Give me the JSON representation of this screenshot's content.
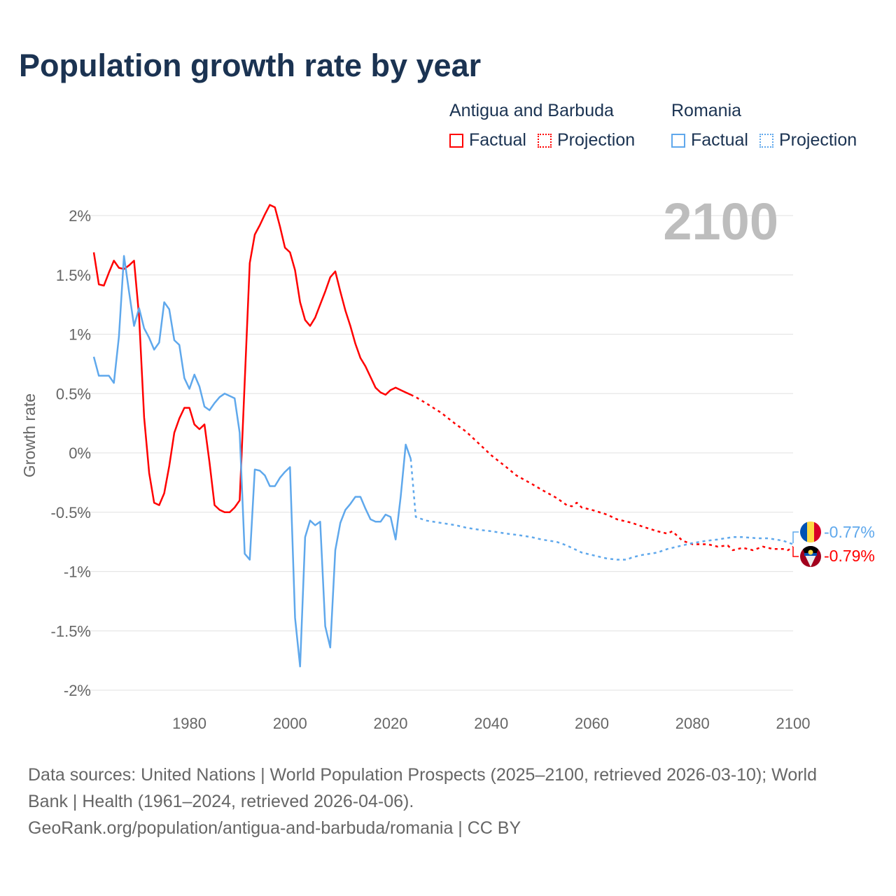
{
  "title": "Population growth rate by year",
  "legend": [
    {
      "country": "Antigua and Barbuda",
      "factual": "Factual",
      "projection": "Projection",
      "color": "#ff0000"
    },
    {
      "country": "Romania",
      "factual": "Factual",
      "projection": "Projection",
      "color": "#5fa8ec"
    }
  ],
  "year_label": "2100",
  "end_labels": {
    "romania": "-0.77%",
    "antigua": "-0.79%"
  },
  "footer": {
    "line1": "Data sources: United Nations | World Population Prospects (2025–2100, retrieved 2026-03-10); World",
    "line2": "Bank | Health (1961–2024, retrieved 2026-04-06).",
    "line3": "GeoRank.org/population/antigua-and-barbuda/romania | CC BY"
  },
  "chart_data": {
    "type": "line",
    "title": "Population growth rate by year",
    "xlabel": "",
    "ylabel": "Growth rate",
    "xlim": [
      1961,
      2100
    ],
    "ylim": [
      -2,
      2
    ],
    "yticks": [
      2,
      1.5,
      1,
      0.5,
      0,
      -0.5,
      -1,
      -1.5,
      -2
    ],
    "ytick_labels": [
      "2%",
      "1.5%",
      "1%",
      "0.5%",
      "0%",
      "-0.5%",
      "-1%",
      "-1.5%",
      "-2%"
    ],
    "xticks": [
      1980,
      2000,
      2020,
      2040,
      2060,
      2080,
      2100
    ],
    "xtick_labels": [
      "1980",
      "2000",
      "2020",
      "2040",
      "2060",
      "2080",
      "2100"
    ],
    "grid": true,
    "legend_position": "top-right",
    "series": [
      {
        "name": "Antigua and Barbuda",
        "color": "#ff0000",
        "factual": {
          "x": [
            1961,
            1962,
            1963,
            1964,
            1965,
            1966,
            1967,
            1968,
            1969,
            1970,
            1971,
            1972,
            1973,
            1974,
            1975,
            1976,
            1977,
            1978,
            1979,
            1980,
            1981,
            1982,
            1983,
            1984,
            1985,
            1986,
            1987,
            1988,
            1989,
            1990,
            1991,
            1992,
            1993,
            1994,
            1995,
            1996,
            1997,
            1998,
            1999,
            2000,
            2001,
            2002,
            2003,
            2004,
            2005,
            2006,
            2007,
            2008,
            2009,
            2010,
            2011,
            2012,
            2013,
            2014,
            2015,
            2016,
            2017,
            2018,
            2019,
            2020,
            2021,
            2022,
            2023,
            2024
          ],
          "y": [
            1.69,
            1.42,
            1.41,
            1.52,
            1.62,
            1.56,
            1.55,
            1.58,
            1.62,
            1.15,
            0.3,
            -0.17,
            -0.42,
            -0.44,
            -0.34,
            -0.11,
            0.17,
            0.29,
            0.38,
            0.38,
            0.24,
            0.2,
            0.24,
            -0.08,
            -0.44,
            -0.48,
            -0.5,
            -0.5,
            -0.46,
            -0.4,
            0.6,
            1.6,
            1.84,
            1.92,
            2.01,
            2.09,
            2.07,
            1.91,
            1.73,
            1.69,
            1.54,
            1.27,
            1.12,
            1.07,
            1.14,
            1.25,
            1.36,
            1.48,
            1.53,
            1.36,
            1.2,
            1.07,
            0.92,
            0.8,
            0.73,
            0.64,
            0.55,
            0.51,
            0.49,
            0.53,
            0.55,
            0.53,
            0.51,
            0.49
          ]
        },
        "projection": {
          "x": [
            2024,
            2025,
            2027,
            2030,
            2033,
            2035,
            2038,
            2040,
            2043,
            2045,
            2048,
            2050,
            2053,
            2055,
            2056,
            2057,
            2058,
            2060,
            2063,
            2065,
            2068,
            2070,
            2073,
            2075,
            2076,
            2078,
            2080,
            2083,
            2085,
            2087,
            2088,
            2090,
            2092,
            2094,
            2096,
            2098,
            2099,
            2100
          ],
          "y": [
            0.49,
            0.47,
            0.42,
            0.34,
            0.24,
            0.18,
            0.06,
            -0.02,
            -0.12,
            -0.19,
            -0.26,
            -0.31,
            -0.38,
            -0.44,
            -0.45,
            -0.42,
            -0.46,
            -0.48,
            -0.52,
            -0.56,
            -0.59,
            -0.62,
            -0.66,
            -0.68,
            -0.66,
            -0.74,
            -0.77,
            -0.77,
            -0.79,
            -0.78,
            -0.82,
            -0.8,
            -0.82,
            -0.79,
            -0.81,
            -0.81,
            -0.82,
            -0.79
          ]
        }
      },
      {
        "name": "Romania",
        "color": "#5fa8ec",
        "factual": {
          "x": [
            1961,
            1962,
            1963,
            1964,
            1965,
            1966,
            1967,
            1968,
            1969,
            1970,
            1971,
            1972,
            1973,
            1974,
            1975,
            1976,
            1977,
            1978,
            1979,
            1980,
            1981,
            1982,
            1983,
            1984,
            1985,
            1986,
            1987,
            1988,
            1989,
            1990,
            1991,
            1992,
            1993,
            1994,
            1995,
            1996,
            1997,
            1998,
            1999,
            2000,
            2001,
            2002,
            2003,
            2004,
            2005,
            2006,
            2007,
            2008,
            2009,
            2010,
            2011,
            2012,
            2013,
            2014,
            2015,
            2016,
            2017,
            2018,
            2019,
            2020,
            2021,
            2022,
            2023,
            2024
          ],
          "y": [
            0.81,
            0.65,
            0.65,
            0.65,
            0.59,
            0.98,
            1.66,
            1.36,
            1.07,
            1.22,
            1.05,
            0.97,
            0.87,
            0.93,
            1.27,
            1.21,
            0.95,
            0.91,
            0.63,
            0.54,
            0.66,
            0.56,
            0.39,
            0.36,
            0.42,
            0.47,
            0.5,
            0.48,
            0.46,
            0.17,
            -0.85,
            -0.9,
            -0.14,
            -0.15,
            -0.19,
            -0.28,
            -0.28,
            -0.21,
            -0.16,
            -0.12,
            -1.39,
            -1.8,
            -0.71,
            -0.57,
            -0.61,
            -0.58,
            -1.46,
            -1.64,
            -0.82,
            -0.59,
            -0.48,
            -0.43,
            -0.37,
            -0.37,
            -0.47,
            -0.56,
            -0.58,
            -0.58,
            -0.52,
            -0.54,
            -0.73,
            -0.37,
            0.07,
            -0.05
          ]
        },
        "projection": {
          "x": [
            2024,
            2025,
            2027,
            2030,
            2033,
            2035,
            2038,
            2040,
            2043,
            2045,
            2048,
            2050,
            2053,
            2055,
            2057,
            2058,
            2060,
            2063,
            2065,
            2067,
            2068,
            2070,
            2073,
            2075,
            2078,
            2080,
            2083,
            2085,
            2088,
            2090,
            2093,
            2095,
            2098,
            2100
          ],
          "y": [
            -0.05,
            -0.54,
            -0.57,
            -0.59,
            -0.61,
            -0.63,
            -0.65,
            -0.66,
            -0.68,
            -0.69,
            -0.71,
            -0.73,
            -0.75,
            -0.78,
            -0.82,
            -0.84,
            -0.86,
            -0.89,
            -0.9,
            -0.9,
            -0.88,
            -0.86,
            -0.84,
            -0.81,
            -0.78,
            -0.76,
            -0.74,
            -0.73,
            -0.71,
            -0.71,
            -0.72,
            -0.72,
            -0.74,
            -0.77
          ]
        }
      }
    ]
  }
}
